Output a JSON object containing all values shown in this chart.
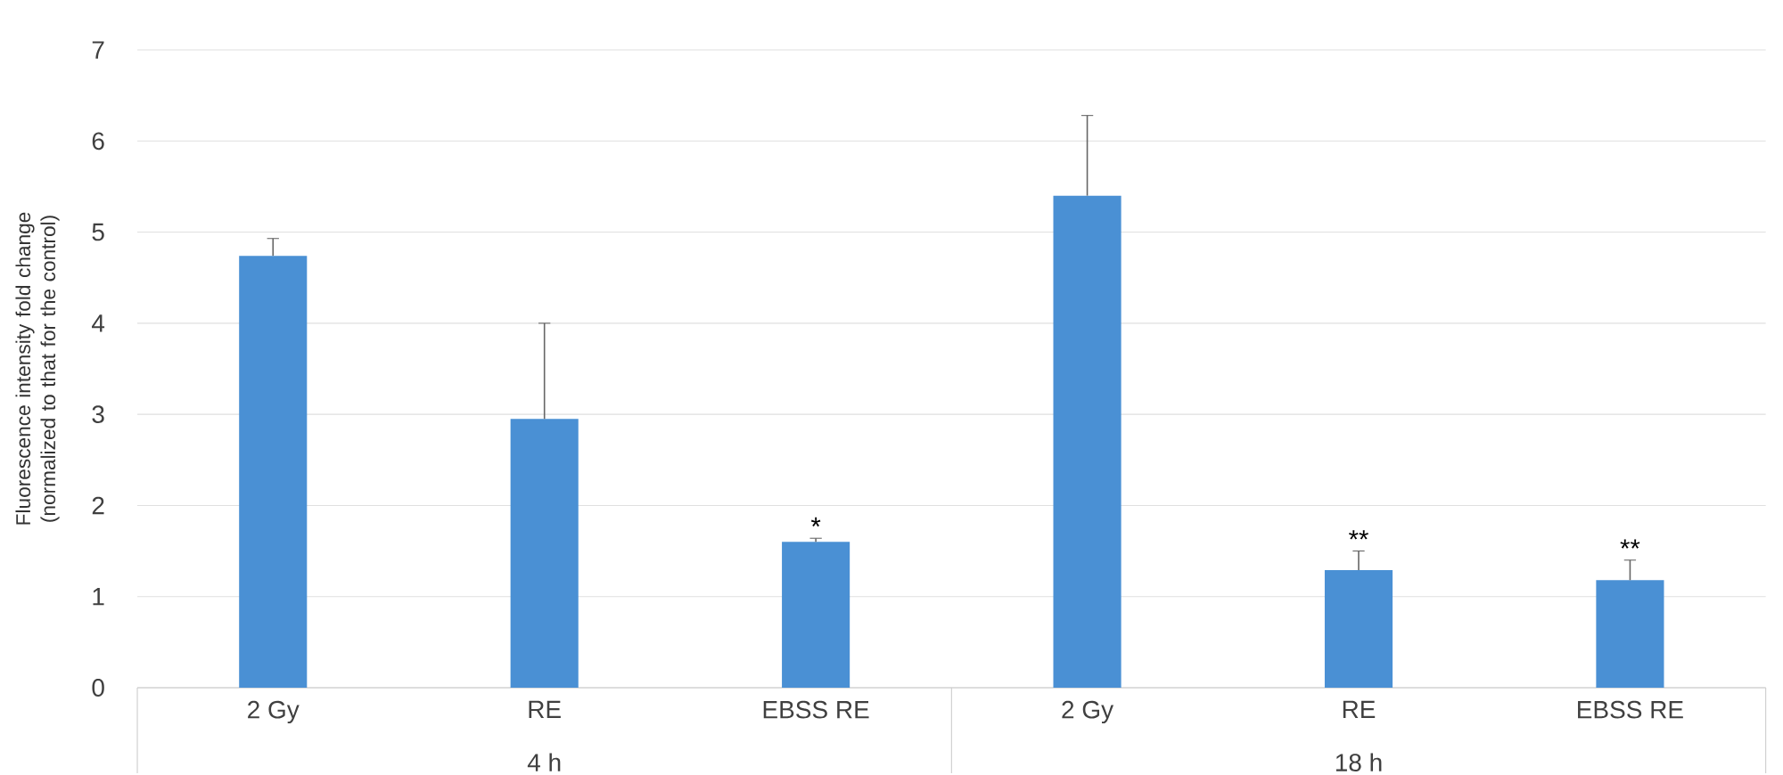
{
  "chart_data": {
    "type": "bar",
    "ylabel": "Fluorescence intensity fold change (normalized to that for the control)",
    "categories": [
      "2 Gy",
      "RE",
      "EBSS RE",
      "2 Gy",
      "RE",
      "EBSS RE"
    ],
    "values": [
      4.74,
      2.95,
      1.6,
      5.4,
      1.29,
      1.18
    ],
    "errors": [
      0.19,
      1.05,
      0.04,
      0.88,
      0.21,
      0.22
    ],
    "value_labels": [
      null,
      null,
      "*",
      null,
      "**",
      "**"
    ],
    "color": "#4a90d4",
    "ylim": [
      0,
      7
    ],
    "yticks": [
      0,
      1,
      2,
      3,
      4,
      5,
      6,
      7
    ],
    "grid": "y",
    "annotations": [
      "4 h",
      "18 h"
    ]
  }
}
